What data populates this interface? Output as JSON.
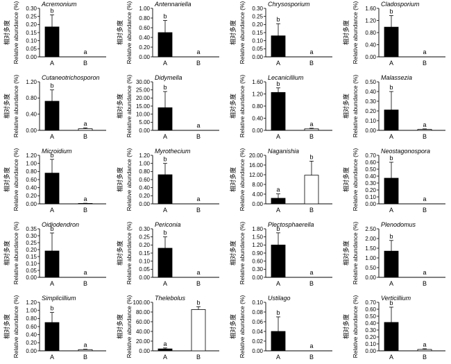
{
  "ylabel_cn": "相对多度",
  "ylabel_en": "Relative abundance (%)",
  "categories": [
    "A",
    "B"
  ],
  "series_colors": [
    "#000000",
    "#ffffff"
  ],
  "chart_data": [
    {
      "type": "bar",
      "title": "Acremonium",
      "categories": [
        "A",
        "B"
      ],
      "values": [
        0.185,
        0
      ],
      "errors": [
        0.075,
        0
      ],
      "sig": [
        "b",
        "a"
      ],
      "ylim": [
        0,
        0.3
      ],
      "yticks": [
        "0.00",
        "0.05",
        "0.10",
        "0.15",
        "0.20",
        "0.25",
        "0.30"
      ]
    },
    {
      "type": "bar",
      "title": "Antennariella",
      "categories": [
        "A",
        "B"
      ],
      "values": [
        0.5,
        0
      ],
      "errors": [
        0.25,
        0
      ],
      "sig": [
        "b",
        "a"
      ],
      "ylim": [
        0,
        1.0
      ],
      "yticks": [
        "0.00",
        "0.20",
        "0.40",
        "0.60",
        "0.80",
        "1.00"
      ]
    },
    {
      "type": "bar",
      "title": "Chrysosporium",
      "categories": [
        "A",
        "B"
      ],
      "values": [
        0.13,
        0
      ],
      "errors": [
        0.075,
        0
      ],
      "sig": [
        "b",
        "a"
      ],
      "ylim": [
        0,
        0.3
      ],
      "yticks": [
        "0.00",
        "0.05",
        "0.10",
        "0.15",
        "0.20",
        "0.25",
        "0.30"
      ]
    },
    {
      "type": "bar",
      "title": "Cladosporium",
      "categories": [
        "A",
        "B"
      ],
      "values": [
        0.98,
        0
      ],
      "errors": [
        0.38,
        0
      ],
      "sig": [
        "b",
        "a"
      ],
      "ylim": [
        0,
        1.6
      ],
      "yticks": [
        "0.00",
        "0.40",
        "0.80",
        "1.20",
        "1.60"
      ]
    },
    {
      "type": "bar",
      "title": "Cutaneotrichosporon",
      "categories": [
        "A",
        "B"
      ],
      "values": [
        0.72,
        0.04
      ],
      "errors": [
        0.28,
        0.02
      ],
      "sig": [
        "b",
        "a"
      ],
      "ylim": [
        0,
        1.2
      ],
      "yticks": [
        "0.00",
        "0.40",
        "0.80",
        "1.20"
      ]
    },
    {
      "type": "bar",
      "title": "Didymella",
      "categories": [
        "A",
        "B"
      ],
      "values": [
        14.0,
        0
      ],
      "errors": [
        10.0,
        0
      ],
      "sig": [
        "b",
        "a"
      ],
      "ylim": [
        0,
        30
      ],
      "yticks": [
        "0.00",
        "5.00",
        "10.00",
        "15.00",
        "20.00",
        "25.00",
        "30.00"
      ]
    },
    {
      "type": "bar",
      "title": "Lecanicillium",
      "categories": [
        "A",
        "B"
      ],
      "values": [
        1.25,
        0.05
      ],
      "errors": [
        0.15,
        0.02
      ],
      "sig": [
        "b",
        "a"
      ],
      "ylim": [
        0,
        1.6
      ],
      "yticks": [
        "0.00",
        "0.40",
        "0.80",
        "1.20",
        "1.60"
      ]
    },
    {
      "type": "bar",
      "title": "Malassezia",
      "categories": [
        "A",
        "B"
      ],
      "values": [
        0.21,
        0.01
      ],
      "errors": [
        0.19,
        0.005
      ],
      "sig": [
        "b",
        "a"
      ],
      "ylim": [
        0,
        0.5
      ],
      "yticks": [
        "0.00",
        "0.10",
        "0.20",
        "0.30",
        "0.40",
        "0.50"
      ]
    },
    {
      "type": "bar",
      "title": "Microidium",
      "categories": [
        "A",
        "B"
      ],
      "values": [
        0.76,
        0.01
      ],
      "errors": [
        0.34,
        0.005
      ],
      "sig": [
        "b",
        "a"
      ],
      "ylim": [
        0,
        1.2
      ],
      "yticks": [
        "0.00",
        "0.20",
        "0.40",
        "0.60",
        "0.80",
        "1.00",
        "1.20"
      ]
    },
    {
      "type": "bar",
      "title": "Myrothecium",
      "categories": [
        "A",
        "B"
      ],
      "values": [
        0.72,
        0
      ],
      "errors": [
        0.28,
        0
      ],
      "sig": [
        "b",
        "a"
      ],
      "ylim": [
        0,
        1.2
      ],
      "yticks": [
        "0.00",
        "0.20",
        "0.40",
        "0.60",
        "0.80",
        "1.00",
        "1.20"
      ]
    },
    {
      "type": "bar",
      "title": "Naganishia",
      "categories": [
        "A",
        "B"
      ],
      "values": [
        2.3,
        11.8
      ],
      "errors": [
        1.8,
        5.8
      ],
      "sig": [
        "a",
        "b"
      ],
      "ylim": [
        0,
        20
      ],
      "yticks": [
        "0.00",
        "4.00",
        "8.00",
        "12.00",
        "16.00",
        "20.00"
      ]
    },
    {
      "type": "bar",
      "title": "Neostagonospora",
      "categories": [
        "A",
        "B"
      ],
      "values": [
        0.37,
        0
      ],
      "errors": [
        0.23,
        0
      ],
      "sig": [
        "b",
        "a"
      ],
      "ylim": [
        0,
        0.7
      ],
      "yticks": [
        "0.00",
        "0.10",
        "0.20",
        "0.30",
        "0.40",
        "0.50",
        "0.60",
        "0.70"
      ]
    },
    {
      "type": "bar",
      "title": "Oidiodendron",
      "categories": [
        "A",
        "B"
      ],
      "values": [
        0.19,
        0
      ],
      "errors": [
        0.13,
        0
      ],
      "sig": [
        "b",
        "a"
      ],
      "ylim": [
        0,
        0.35
      ],
      "yticks": [
        "0.00",
        "0.05",
        "0.10",
        "0.15",
        "0.20",
        "0.25",
        "0.30",
        "0.35"
      ]
    },
    {
      "type": "bar",
      "title": "Periconia",
      "categories": [
        "A",
        "B"
      ],
      "values": [
        0.18,
        0
      ],
      "errors": [
        0.07,
        0
      ],
      "sig": [
        "b",
        "a"
      ],
      "ylim": [
        0,
        0.3
      ],
      "yticks": [
        "0.00",
        "0.05",
        "0.10",
        "0.15",
        "0.20",
        "0.25",
        "0.30"
      ]
    },
    {
      "type": "bar",
      "title": "Plectosphaerella",
      "categories": [
        "A",
        "B"
      ],
      "values": [
        1.2,
        0
      ],
      "errors": [
        0.45,
        0
      ],
      "sig": [
        "b",
        "a"
      ],
      "ylim": [
        0,
        1.8
      ],
      "yticks": [
        "0.00",
        "0.30",
        "0.60",
        "0.90",
        "1.20",
        "1.50",
        "1.80"
      ]
    },
    {
      "type": "bar",
      "title": "Plenodomus",
      "categories": [
        "A",
        "B"
      ],
      "values": [
        1.35,
        0
      ],
      "errors": [
        0.55,
        0
      ],
      "sig": [
        "b",
        "a"
      ],
      "ylim": [
        0,
        2.5
      ],
      "yticks": [
        "0.00",
        "0.50",
        "1.00",
        "1.50",
        "2.00",
        "2.50"
      ]
    },
    {
      "type": "bar",
      "title": "Simplicillium",
      "categories": [
        "A",
        "B"
      ],
      "values": [
        0.7,
        0.03
      ],
      "errors": [
        0.25,
        0.01
      ],
      "sig": [
        "b",
        "a"
      ],
      "ylim": [
        0,
        1.2
      ],
      "yticks": [
        "0.00",
        "0.20",
        "0.40",
        "0.60",
        "0.80",
        "1.00",
        "1.20"
      ]
    },
    {
      "type": "bar",
      "title": "Thelebolus",
      "categories": [
        "A",
        "B"
      ],
      "values": [
        4.0,
        85.0
      ],
      "errors": [
        2.0,
        6.0
      ],
      "sig": [
        "a",
        "b"
      ],
      "ylim": [
        0,
        100
      ],
      "yticks": [
        "0.00",
        "20.00",
        "40.00",
        "60.00",
        "80.00",
        "100.00"
      ]
    },
    {
      "type": "bar",
      "title": "Ustilago",
      "categories": [
        "A",
        "B"
      ],
      "values": [
        0.04,
        0
      ],
      "errors": [
        0.03,
        0
      ],
      "sig": [
        "b",
        "a"
      ],
      "ylim": [
        0,
        0.1
      ],
      "yticks": [
        "0.00",
        "0.02",
        "0.04",
        "0.06",
        "0.08",
        "0.10"
      ]
    },
    {
      "type": "bar",
      "title": "Verticillium",
      "categories": [
        "A",
        "B"
      ],
      "values": [
        0.41,
        0.02
      ],
      "errors": [
        0.22,
        0.01
      ],
      "sig": [
        "b",
        "a"
      ],
      "ylim": [
        0,
        0.7
      ],
      "yticks": [
        "0.00",
        "0.10",
        "0.20",
        "0.30",
        "0.40",
        "0.50",
        "0.60",
        "0.70"
      ]
    }
  ]
}
